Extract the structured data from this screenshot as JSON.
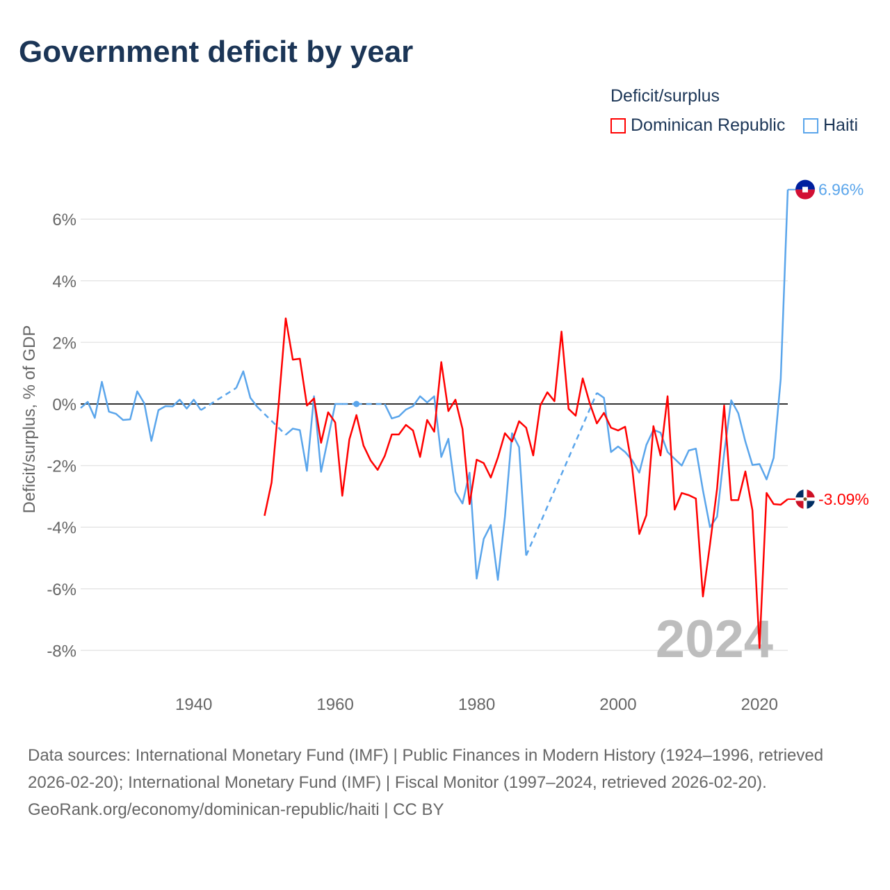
{
  "title": "Government deficit by year",
  "legend": {
    "title": "Deficit/surplus",
    "items": [
      {
        "name": "Dominican Republic",
        "color": "#ff0000"
      },
      {
        "name": "Haiti",
        "color": "#5aa5eb"
      }
    ]
  },
  "chart_data": {
    "type": "line",
    "title": "Government deficit by year",
    "xlabel": "",
    "ylabel": "Deficit/surplus, % of GDP",
    "xlim": [
      1924,
      2024
    ],
    "ylim": [
      -9,
      7
    ],
    "x_ticks": [
      1940,
      1960,
      1980,
      2000,
      2020
    ],
    "y_ticks": [
      -8,
      -6,
      -4,
      -2,
      0,
      2,
      4,
      6
    ],
    "y_tick_labels": [
      "-8%",
      "-6%",
      "-4%",
      "-2%",
      "0%",
      "2%",
      "4%",
      "6%"
    ],
    "x_tick_labels": [
      "1940",
      "1960",
      "1980",
      "2000",
      "2020"
    ],
    "year_watermark": "2024",
    "grid": true,
    "legend_position": "top-right",
    "series": [
      {
        "name": "Dominican Republic",
        "color": "#ff0000",
        "start_year": 1950,
        "values": [
          -3.63,
          -2.55,
          0,
          2.78,
          1.44,
          1.47,
          -0.05,
          0.18,
          -1.26,
          -0.27,
          -0.6,
          -2.98,
          -1.15,
          -0.36,
          -1.35,
          -1.83,
          -2.14,
          -1.69,
          -0.99,
          -0.99,
          -0.68,
          -0.86,
          -1.72,
          -0.52,
          -0.9,
          1.36,
          -0.23,
          0.14,
          -0.81,
          -3.25,
          -1.81,
          -1.92,
          -2.39,
          -1.74,
          -0.95,
          -1.22,
          -0.56,
          -0.77,
          -1.67,
          -0.05,
          0.38,
          0.09,
          2.35,
          -0.16,
          -0.38,
          0.83,
          0.02,
          -0.63,
          -0.29,
          -0.77,
          -0.86,
          -0.74,
          -2.08,
          -4.22,
          -3.61,
          -0.72,
          -1.67,
          0.25,
          -3.43,
          -2.89,
          -2.96,
          -3.07,
          -6.25,
          -4.56,
          -2.75,
          -0.05,
          -3.12,
          -3.12,
          -2.19,
          -3.45,
          -7.92,
          -2.89,
          -3.25,
          -3.27,
          -3.09
        ],
        "end_label": "-3.09%"
      },
      {
        "name": "Haiti",
        "color": "#5aa5eb",
        "start_year": 1924,
        "values": [
          -0.13,
          0.07,
          -0.45,
          0.72,
          -0.25,
          -0.32,
          -0.52,
          -0.5,
          0.41,
          0.02,
          -1.2,
          -0.2,
          -0.07,
          -0.08,
          0.14,
          -0.15,
          0.14,
          -0.2,
          null,
          null,
          null,
          null,
          0.52,
          1.06,
          0.2,
          -0.1,
          null,
          null,
          null,
          -1.0,
          -0.8,
          -0.85,
          -2.17,
          0.25,
          -2.2,
          -1.1,
          0,
          0,
          null,
          0,
          null,
          null,
          null,
          0,
          -0.47,
          -0.4,
          -0.18,
          -0.07,
          0.25,
          0.05,
          0.25,
          -1.72,
          -1.13,
          -2.85,
          -3.23,
          -2.23,
          -5.67,
          -4.38,
          -3.93,
          -5.71,
          -3.66,
          -0.95,
          -1.4,
          -4.92,
          null,
          null,
          null,
          null,
          null,
          null,
          null,
          null,
          null,
          0.36,
          0.2,
          -1.56,
          -1.38,
          -1.56,
          -1.83,
          -2.23,
          -1.33,
          -0.84,
          -0.93,
          -1.56,
          -1.78,
          -2.0,
          -1.51,
          -1.45,
          -2.8,
          -4.0,
          -3.66,
          -1.6,
          0.12,
          -0.3,
          -1.22,
          -1.98,
          -1.95,
          -2.45,
          -1.75,
          0.81,
          6.96
        ],
        "end_label": "6.96%"
      }
    ]
  },
  "footer": {
    "sources": "Data sources: International Monetary Fund (IMF) | Public Finances in Modern History (1924–1996, retrieved 2026-02-20); International Monetary Fund (IMF) | Fiscal Monitor (1997–2024, retrieved 2026-02-20).",
    "credit": "GeoRank.org/economy/dominican-republic/haiti | CC BY"
  }
}
